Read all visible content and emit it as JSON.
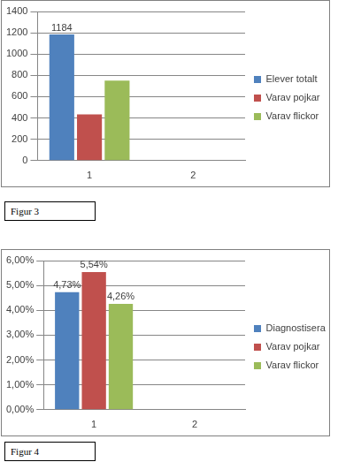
{
  "chart_data": [
    {
      "type": "bar",
      "caption": "Figur 3",
      "categories": [
        "1",
        "2"
      ],
      "series": [
        {
          "name": "Elever totalt",
          "color": "#4f81bd",
          "values": [
            1184,
            null
          ],
          "data_labels": true
        },
        {
          "name": "Varav pojkar",
          "color": "#c0504d",
          "values": [
            433,
            null
          ]
        },
        {
          "name": "Varav flickor",
          "color": "#9bbb59",
          "values": [
            751,
            null
          ]
        }
      ],
      "ylim": [
        0,
        1400
      ],
      "yticks": [
        0,
        200,
        400,
        600,
        800,
        1000,
        1200,
        1400
      ],
      "grid": true,
      "legend": "right"
    },
    {
      "type": "bar",
      "caption": "Figur 4",
      "categories": [
        "1",
        "2"
      ],
      "series": [
        {
          "name": "Diagnostiserade dyslektiker totalt",
          "color": "#4f81bd",
          "values": [
            4.73,
            null
          ],
          "value_labels": [
            "4,73%",
            null
          ],
          "data_labels": true
        },
        {
          "name": "Varav pojkar",
          "color": "#c0504d",
          "values": [
            5.54,
            null
          ],
          "value_labels": [
            "5,54%",
            null
          ],
          "data_labels": true
        },
        {
          "name": "Varav flickor",
          "color": "#9bbb59",
          "values": [
            4.26,
            null
          ],
          "value_labels": [
            "4,26%",
            null
          ],
          "data_labels": true
        }
      ],
      "ylim": [
        0,
        6
      ],
      "yticks": [
        {
          "value": 0,
          "label": "0,00%"
        },
        {
          "value": 1,
          "label": "1,00%"
        },
        {
          "value": 2,
          "label": "2,00%"
        },
        {
          "value": 3,
          "label": "3,00%"
        },
        {
          "value": 4,
          "label": "4,00%"
        },
        {
          "value": 5,
          "label": "5,00%"
        },
        {
          "value": 6,
          "label": "6,00%"
        }
      ],
      "grid": true,
      "legend": "right"
    }
  ]
}
